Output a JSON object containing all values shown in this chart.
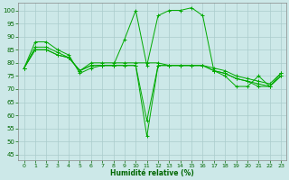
{
  "xlabel": "Humidité relative (%)",
  "xlim": [
    -0.5,
    23.5
  ],
  "ylim": [
    43,
    103
  ],
  "yticks": [
    45,
    50,
    55,
    60,
    65,
    70,
    75,
    80,
    85,
    90,
    95,
    100
  ],
  "xticks": [
    0,
    1,
    2,
    3,
    4,
    5,
    6,
    7,
    8,
    9,
    10,
    11,
    12,
    13,
    14,
    15,
    16,
    17,
    18,
    19,
    20,
    21,
    22,
    23
  ],
  "bg_color": "#cce8e8",
  "grid_color": "#aacccc",
  "line_color": "#00aa00",
  "series": [
    [
      78,
      88,
      88,
      85,
      83,
      76,
      78,
      79,
      79,
      89,
      100,
      79,
      98,
      100,
      100,
      101,
      98,
      77,
      75,
      71,
      71,
      75,
      71,
      76
    ],
    [
      78,
      86,
      86,
      84,
      82,
      77,
      80,
      80,
      80,
      80,
      80,
      80,
      80,
      79,
      79,
      79,
      79,
      78,
      77,
      75,
      74,
      73,
      72,
      76
    ],
    [
      78,
      85,
      85,
      83,
      82,
      77,
      79,
      79,
      79,
      79,
      79,
      58,
      79,
      79,
      79,
      79,
      79,
      77,
      76,
      74,
      73,
      72,
      71,
      75
    ],
    [
      78,
      85,
      85,
      83,
      82,
      77,
      79,
      79,
      79,
      79,
      79,
      52,
      79,
      79,
      79,
      79,
      79,
      77,
      76,
      74,
      73,
      71,
      71,
      75
    ]
  ]
}
